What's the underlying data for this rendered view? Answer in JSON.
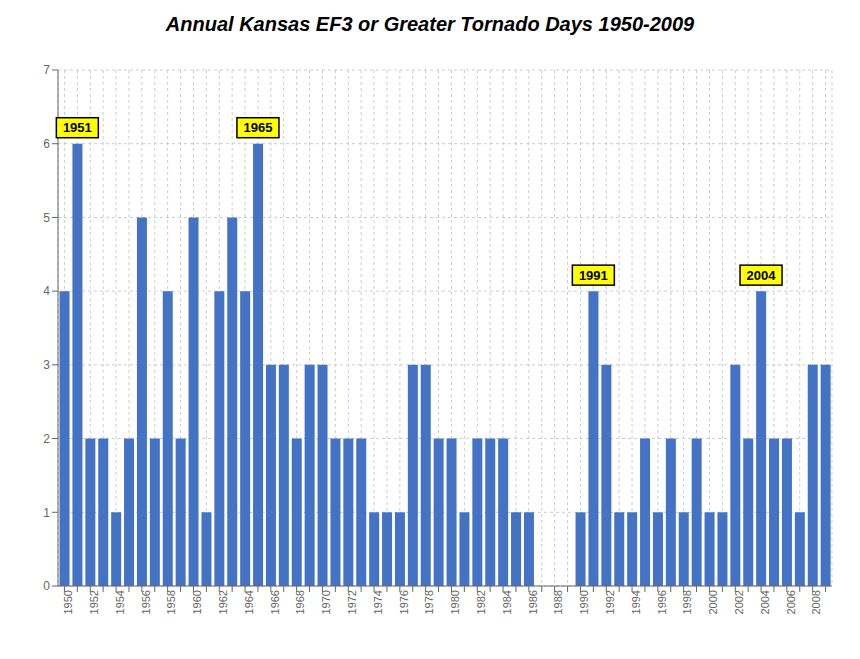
{
  "chart_data": {
    "type": "bar",
    "title": "Annual Kansas EF3 or Greater Tornado Days 1950-2009",
    "categories": [
      "1950",
      null,
      "1952",
      null,
      "1954",
      null,
      "1956",
      null,
      "1958",
      null,
      "1960",
      null,
      "1962",
      null,
      "1964",
      null,
      "1966",
      null,
      "1968",
      null,
      "1970",
      null,
      "1972",
      null,
      "1974",
      null,
      "1976",
      null,
      "1978",
      null,
      "1980",
      null,
      "1982",
      null,
      "1984",
      null,
      "1986",
      null,
      "1988",
      null,
      "1990",
      null,
      "1992",
      null,
      "1994",
      null,
      "1996",
      null,
      "1998",
      null,
      "2000",
      null,
      "2002",
      null,
      "2004",
      null,
      "2006",
      null,
      "2008",
      null
    ],
    "values": [
      4,
      6,
      2,
      2,
      1,
      2,
      5,
      2,
      4,
      2,
      5,
      1,
      4,
      5,
      4,
      6,
      3,
      3,
      2,
      3,
      3,
      2,
      2,
      2,
      1,
      1,
      1,
      3,
      3,
      2,
      2,
      1,
      2,
      2,
      2,
      1,
      1,
      0,
      0,
      0,
      1,
      4,
      3,
      1,
      1,
      2,
      1,
      2,
      1,
      2,
      1,
      1,
      3,
      2,
      4,
      2,
      2,
      1,
      3,
      3
    ],
    "color": "#4472C4",
    "ylim": [
      0,
      7
    ],
    "yticks": [
      0,
      1,
      2,
      3,
      4,
      5,
      6,
      7
    ],
    "grid": true,
    "annotations": [
      {
        "label": "1951",
        "index": 1,
        "value": 6
      },
      {
        "label": "1965",
        "index": 15,
        "value": 6
      },
      {
        "label": "1991",
        "index": 41,
        "value": 4
      },
      {
        "label": "2004",
        "index": 54,
        "value": 4
      }
    ]
  }
}
